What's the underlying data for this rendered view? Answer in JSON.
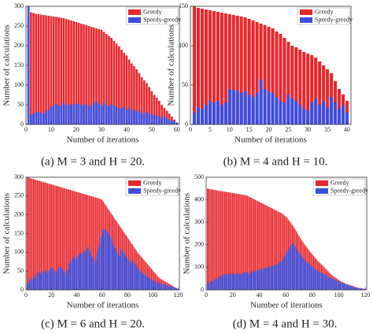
{
  "chart_data": [
    {
      "type": "bar",
      "caption": "(a) M = 3 and H = 20.",
      "xlabel": "Number of iterations",
      "ylabel": "Number of calculations",
      "legend": "upper right",
      "xlim": [
        0,
        61
      ],
      "ylim": [
        0,
        300
      ],
      "xticks": [
        0,
        10,
        20,
        30,
        40,
        50,
        60
      ],
      "yticks": [
        0,
        50,
        100,
        150,
        200,
        250,
        300
      ],
      "x": [
        1,
        2,
        3,
        4,
        5,
        6,
        7,
        8,
        9,
        10,
        11,
        12,
        13,
        14,
        15,
        16,
        17,
        18,
        19,
        20,
        21,
        22,
        23,
        24,
        25,
        26,
        27,
        28,
        29,
        30,
        31,
        32,
        33,
        34,
        35,
        36,
        37,
        38,
        39,
        40,
        41,
        42,
        43,
        44,
        45,
        46,
        47,
        48,
        49,
        50,
        51,
        52,
        53,
        54,
        55,
        56,
        57,
        58,
        59,
        60
      ],
      "series": [
        {
          "name": "Greedy",
          "color": "#e8262b",
          "values": [
            300,
            285,
            283,
            281,
            280,
            279,
            278,
            277,
            276,
            275,
            274,
            273,
            272,
            271,
            270,
            268,
            266,
            264,
            262,
            260,
            258,
            256,
            254,
            252,
            250,
            248,
            246,
            244,
            242,
            240,
            235,
            230,
            225,
            220,
            212,
            205,
            198,
            190,
            182,
            175,
            165,
            155,
            148,
            140,
            130,
            120,
            112,
            105,
            95,
            85,
            75,
            68,
            60,
            50,
            42,
            35,
            28,
            20,
            12,
            5
          ]
        },
        {
          "name": "Speedy-greedy",
          "color": "#3a4fe0",
          "values": [
            300,
            25,
            28,
            30,
            32,
            30,
            28,
            35,
            38,
            45,
            48,
            52,
            50,
            46,
            55,
            50,
            48,
            52,
            50,
            54,
            52,
            50,
            48,
            52,
            45,
            50,
            55,
            58,
            52,
            48,
            55,
            50,
            46,
            52,
            48,
            45,
            42,
            40,
            45,
            38,
            42,
            35,
            38,
            32,
            35,
            30,
            28,
            32,
            25,
            28,
            22,
            25,
            20,
            18,
            22,
            15,
            12,
            10,
            8,
            5
          ]
        }
      ]
    },
    {
      "type": "bar",
      "caption": "(b) M = 4 and H = 10.",
      "xlabel": "Number of iterations",
      "ylabel": "Number of calculations",
      "legend": "upper right",
      "xlim": [
        0,
        41
      ],
      "ylim": [
        0,
        150
      ],
      "xticks": [
        0,
        5,
        10,
        15,
        20,
        25,
        30,
        35,
        40
      ],
      "yticks": [
        0,
        50,
        100,
        150
      ],
      "x": [
        1,
        2,
        3,
        4,
        5,
        6,
        7,
        8,
        9,
        10,
        11,
        12,
        13,
        14,
        15,
        16,
        17,
        18,
        19,
        20,
        21,
        22,
        23,
        24,
        25,
        26,
        27,
        28,
        29,
        30,
        31,
        32,
        33,
        34,
        35,
        36,
        37,
        38,
        39,
        40
      ],
      "series": [
        {
          "name": "Greedy",
          "color": "#e8262b",
          "values": [
            150,
            148,
            147,
            146,
            145,
            144,
            143,
            142,
            141,
            140,
            139,
            138,
            137,
            136,
            134,
            132,
            130,
            128,
            126,
            124,
            122,
            118,
            115,
            110,
            105,
            100,
            98,
            95,
            92,
            90,
            88,
            85,
            80,
            75,
            70,
            65,
            55,
            45,
            38,
            30
          ]
        },
        {
          "name": "Speedy-greedy",
          "color": "#3a4fe0",
          "values": [
            15,
            22,
            20,
            25,
            30,
            28,
            30,
            25,
            28,
            45,
            44,
            43,
            40,
            42,
            38,
            35,
            40,
            57,
            45,
            42,
            40,
            35,
            30,
            28,
            38,
            33,
            30,
            25,
            20,
            18,
            28,
            32,
            25,
            30,
            22,
            35,
            28,
            20,
            25,
            15
          ]
        }
      ]
    },
    {
      "type": "bar",
      "caption": "(c) M = 6 and H = 20.",
      "xlabel": "Number of iterations",
      "ylabel": "Number of calculations",
      "legend": "upper right",
      "xlim": [
        0,
        121
      ],
      "ylim": [
        0,
        300
      ],
      "xticks": [
        0,
        20,
        40,
        60,
        80,
        100,
        120
      ],
      "yticks": [
        0,
        50,
        100,
        150,
        200,
        250,
        300
      ],
      "x": [
        1,
        2,
        3,
        4,
        5,
        6,
        7,
        8,
        9,
        10,
        11,
        12,
        13,
        14,
        15,
        16,
        17,
        18,
        19,
        20,
        21,
        22,
        23,
        24,
        25,
        26,
        27,
        28,
        29,
        30,
        31,
        32,
        33,
        34,
        35,
        36,
        37,
        38,
        39,
        40,
        41,
        42,
        43,
        44,
        45,
        46,
        47,
        48,
        49,
        50,
        51,
        52,
        53,
        54,
        55,
        56,
        57,
        58,
        59,
        60,
        61,
        62,
        63,
        64,
        65,
        66,
        67,
        68,
        69,
        70,
        71,
        72,
        73,
        74,
        75,
        76,
        77,
        78,
        79,
        80,
        81,
        82,
        83,
        84,
        85,
        86,
        87,
        88,
        89,
        90,
        91,
        92,
        93,
        94,
        95,
        96,
        97,
        98,
        99,
        100,
        101,
        102,
        103,
        104,
        105,
        106,
        107,
        108,
        109,
        110,
        111,
        112,
        113,
        114,
        115,
        116,
        117,
        118,
        119,
        120
      ],
      "series": [
        {
          "name": "Greedy",
          "color": "#e8262b",
          "values": [
            300,
            299,
            298,
            297,
            296,
            295,
            294,
            293,
            292,
            291,
            290,
            289,
            288,
            287,
            286,
            285,
            284,
            283,
            282,
            281,
            280,
            279,
            278,
            277,
            276,
            275,
            274,
            273,
            272,
            271,
            270,
            269,
            268,
            267,
            266,
            265,
            264,
            263,
            262,
            261,
            260,
            259,
            258,
            257,
            256,
            255,
            254,
            253,
            252,
            251,
            250,
            249,
            248,
            247,
            246,
            245,
            244,
            243,
            242,
            240,
            235,
            230,
            225,
            220,
            215,
            210,
            205,
            200,
            195,
            190,
            185,
            180,
            175,
            170,
            165,
            160,
            155,
            150,
            145,
            140,
            135,
            130,
            125,
            120,
            115,
            110,
            105,
            100,
            96,
            92,
            88,
            84,
            80,
            76,
            72,
            68,
            64,
            60,
            56,
            52,
            48,
            44,
            40,
            36,
            33,
            30,
            28,
            26,
            24,
            22,
            20,
            18,
            16,
            14,
            12,
            10,
            8,
            6,
            4,
            2
          ]
        },
        {
          "name": "Speedy-greedy",
          "color": "#3a4fe0",
          "values": [
            20,
            15,
            25,
            30,
            28,
            35,
            40,
            30,
            45,
            50,
            40,
            45,
            50,
            48,
            55,
            52,
            45,
            50,
            55,
            60,
            58,
            55,
            50,
            45,
            55,
            60,
            62,
            58,
            55,
            50,
            45,
            50,
            55,
            70,
            75,
            80,
            85,
            90,
            85,
            80,
            90,
            95,
            100,
            95,
            100,
            105,
            100,
            110,
            115,
            105,
            100,
            90,
            85,
            80,
            75,
            95,
            110,
            120,
            140,
            150,
            160,
            165,
            160,
            155,
            150,
            145,
            140,
            130,
            120,
            115,
            110,
            100,
            95,
            90,
            110,
            105,
            100,
            95,
            90,
            85,
            80,
            75,
            70,
            80,
            75,
            70,
            65,
            60,
            55,
            50,
            48,
            45,
            42,
            40,
            38,
            35,
            32,
            30,
            28,
            25,
            24,
            22,
            20,
            20,
            18,
            18,
            16,
            15,
            14,
            14,
            12,
            12,
            10,
            10,
            8,
            8,
            6,
            5,
            4,
            2
          ]
        }
      ]
    },
    {
      "type": "bar",
      "caption": "(d) M = 4 and H = 30.",
      "xlabel": "Number of iterations",
      "ylabel": "Number of calculations",
      "legend": "upper right",
      "xlim": [
        0,
        121
      ],
      "ylim": [
        0,
        500
      ],
      "xticks": [
        0,
        20,
        40,
        60,
        80,
        100,
        120
      ],
      "yticks": [
        0,
        100,
        200,
        300,
        400,
        500
      ],
      "x": [
        1,
        2,
        3,
        4,
        5,
        6,
        7,
        8,
        9,
        10,
        11,
        12,
        13,
        14,
        15,
        16,
        17,
        18,
        19,
        20,
        21,
        22,
        23,
        24,
        25,
        26,
        27,
        28,
        29,
        30,
        31,
        32,
        33,
        34,
        35,
        36,
        37,
        38,
        39,
        40,
        41,
        42,
        43,
        44,
        45,
        46,
        47,
        48,
        49,
        50,
        51,
        52,
        53,
        54,
        55,
        56,
        57,
        58,
        59,
        60,
        61,
        62,
        63,
        64,
        65,
        66,
        67,
        68,
        69,
        70,
        71,
        72,
        73,
        74,
        75,
        76,
        77,
        78,
        79,
        80,
        81,
        82,
        83,
        84,
        85,
        86,
        87,
        88,
        89,
        90,
        91,
        92,
        93,
        94,
        95,
        96,
        97,
        98,
        99,
        100,
        101,
        102,
        103,
        104,
        105,
        106,
        107,
        108,
        109,
        110,
        111,
        112,
        113,
        114,
        115,
        116,
        117,
        118,
        119,
        120
      ],
      "series": [
        {
          "name": "Greedy",
          "color": "#e8262b",
          "values": [
            450,
            448,
            447,
            446,
            445,
            444,
            443,
            442,
            441,
            440,
            439,
            438,
            437,
            436,
            435,
            434,
            433,
            432,
            431,
            430,
            429,
            428,
            427,
            426,
            425,
            424,
            423,
            422,
            421,
            420,
            418,
            415,
            412,
            409,
            406,
            403,
            400,
            397,
            394,
            391,
            388,
            385,
            382,
            379,
            376,
            373,
            370,
            367,
            364,
            361,
            358,
            355,
            352,
            349,
            346,
            343,
            340,
            335,
            330,
            325,
            320,
            312,
            304,
            296,
            288,
            280,
            270,
            260,
            250,
            240,
            230,
            220,
            212,
            204,
            196,
            188,
            180,
            172,
            165,
            158,
            151,
            144,
            137,
            130,
            124,
            118,
            112,
            106,
            100,
            94,
            88,
            82,
            76,
            70,
            65,
            60,
            56,
            52,
            48,
            44,
            40,
            37,
            34,
            31,
            28,
            26,
            24,
            22,
            20,
            18,
            16,
            14,
            12,
            10,
            9,
            8,
            7,
            6,
            5,
            4
          ]
        },
        {
          "name": "Speedy-greedy",
          "color": "#3a4fe0",
          "values": [
            25,
            30,
            35,
            40,
            38,
            45,
            50,
            48,
            55,
            60,
            65,
            62,
            68,
            70,
            65,
            72,
            68,
            70,
            75,
            72,
            70,
            68,
            72,
            75,
            70,
            68,
            72,
            75,
            78,
            80,
            75,
            72,
            78,
            80,
            85,
            82,
            80,
            85,
            88,
            90,
            92,
            95,
            90,
            98,
            100,
            95,
            102,
            105,
            100,
            108,
            110,
            105,
            112,
            115,
            120,
            125,
            130,
            140,
            150,
            160,
            170,
            180,
            190,
            200,
            205,
            210,
            195,
            185,
            175,
            165,
            160,
            150,
            140,
            135,
            130,
            125,
            120,
            115,
            110,
            105,
            100,
            95,
            90,
            85,
            80,
            78,
            75,
            72,
            70,
            68,
            65,
            60,
            55,
            52,
            50,
            48,
            45,
            42,
            40,
            38,
            35,
            32,
            30,
            28,
            26,
            24,
            22,
            20,
            18,
            16,
            14,
            12,
            10,
            9,
            8,
            7,
            6,
            5,
            4,
            3
          ]
        }
      ]
    }
  ]
}
